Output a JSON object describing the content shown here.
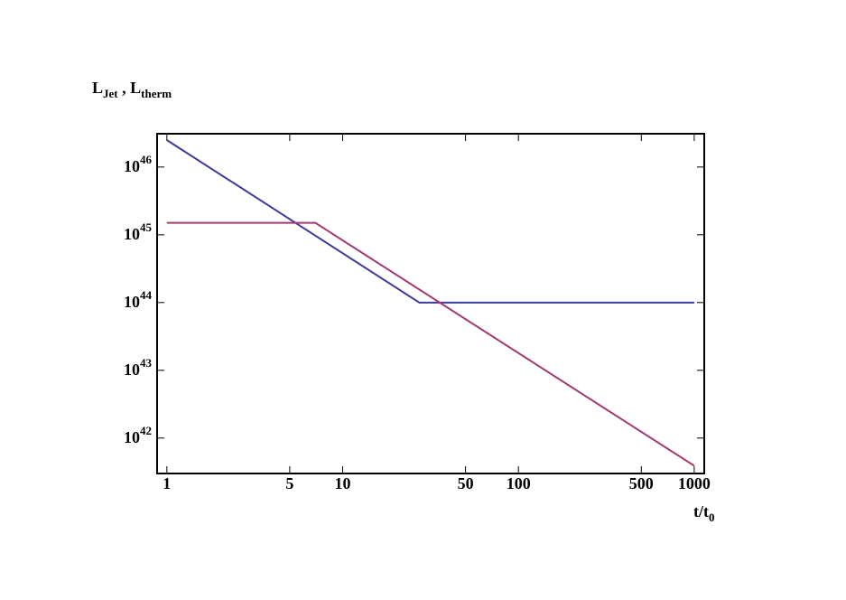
{
  "chart_data": {
    "type": "line",
    "ylabel": "L_{Jet} , L_{therm}",
    "xlabel": "t/t_{0}",
    "xscale": "log",
    "yscale": "log",
    "xlim": [
      0.88,
      1140
    ],
    "ylim": [
      3e+41,
      3.1e+46
    ],
    "xticks": [
      1,
      5,
      10,
      50,
      100,
      500,
      1000
    ],
    "yticks": [
      {
        "value": 1e+42,
        "label": "10^{42}"
      },
      {
        "value": 1e+43,
        "label": "10^{43}"
      },
      {
        "value": 1e+44,
        "label": "10^{44}"
      },
      {
        "value": 1e+45,
        "label": "10^{45}"
      },
      {
        "value": 1e+46,
        "label": "10^{46}"
      }
    ],
    "series": [
      {
        "color": "#3b3ba0",
        "x": [
          1,
          27.3,
          1000
        ],
        "values": [
          2.5e+46,
          1e+44,
          1e+44
        ]
      },
      {
        "color": "#a03a72",
        "x": [
          1,
          7,
          1000
        ],
        "values": [
          1.5e+45,
          1.5e+45,
          3.9e+41
        ]
      }
    ]
  }
}
